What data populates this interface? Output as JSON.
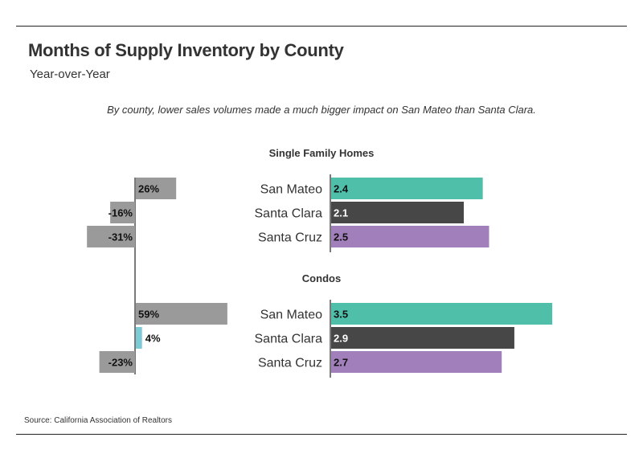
{
  "header": {
    "title": "Months of Supply Inventory by County",
    "subtitle": "Year-over-Year",
    "note": "By county, lower sales volumes made a much bigger impact on San Mateo than Santa Clara."
  },
  "footer": {
    "source": "Source:  California Association of Realtors"
  },
  "colors": {
    "change_bar": "#9a9a9a",
    "change_bar_small": "#7ccbd6",
    "San Mateo": "#4fbfaa",
    "Santa Clara": "#474747",
    "Santa Cruz": "#a07fba"
  },
  "chart_data": [
    {
      "type": "bar",
      "orientation": "horizontal",
      "title": "Single Family Homes",
      "categories": [
        "San Mateo",
        "Santa Clara",
        "Santa Cruz"
      ],
      "yoy_change": {
        "values": [
          26,
          -16,
          -31
        ],
        "labels": [
          "26%",
          "-16%",
          "-31%"
        ]
      },
      "months_supply": {
        "values": [
          2.4,
          2.1,
          2.5
        ],
        "labels": [
          "2.4",
          "2.1",
          "2.5"
        ]
      }
    },
    {
      "type": "bar",
      "orientation": "horizontal",
      "title": "Condos",
      "categories": [
        "San Mateo",
        "Santa Clara",
        "Santa Cruz"
      ],
      "yoy_change": {
        "values": [
          59,
          4,
          -23
        ],
        "labels": [
          "59%",
          "4%",
          "-23%"
        ]
      },
      "months_supply": {
        "values": [
          3.5,
          2.9,
          2.7
        ],
        "labels": [
          "3.5",
          "2.9",
          "2.7"
        ]
      }
    }
  ]
}
